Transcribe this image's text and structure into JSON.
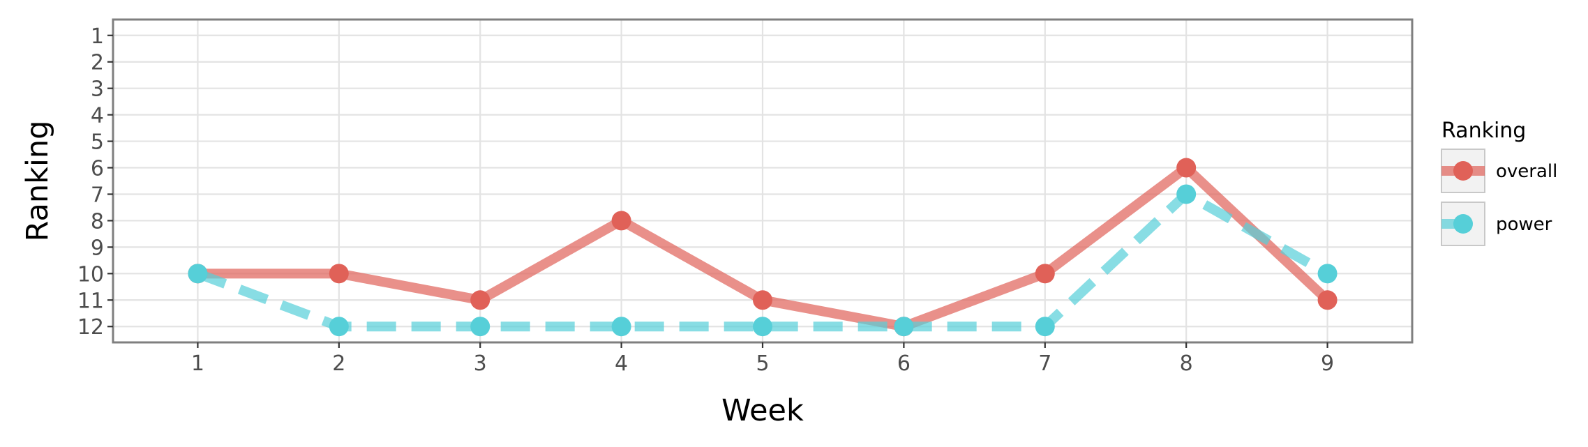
{
  "chart_data": {
    "type": "line",
    "x": [
      1,
      2,
      3,
      4,
      5,
      6,
      7,
      8,
      9
    ],
    "x_ticks": [
      "1",
      "2",
      "3",
      "4",
      "5",
      "6",
      "7",
      "8",
      "9"
    ],
    "y_ticks": [
      "1",
      "2",
      "3",
      "4",
      "5",
      "6",
      "7",
      "8",
      "9",
      "10",
      "11",
      "12"
    ],
    "xlabel": "Week",
    "ylabel": "Ranking",
    "xlim": [
      0.4,
      9.6
    ],
    "ylim": [
      12.6,
      0.4
    ],
    "y_reversed": true,
    "grid": true,
    "legend_title": "Ranking",
    "legend_position": "right",
    "series": [
      {
        "name": "overall",
        "values": [
          10,
          10,
          11,
          8,
          11,
          12,
          10,
          6,
          11
        ],
        "color": "#e06158",
        "line_style": "solid"
      },
      {
        "name": "power",
        "values": [
          10,
          12,
          12,
          12,
          12,
          12,
          12,
          7,
          10
        ],
        "color": "#56cfd8",
        "line_style": "dashed"
      }
    ]
  }
}
